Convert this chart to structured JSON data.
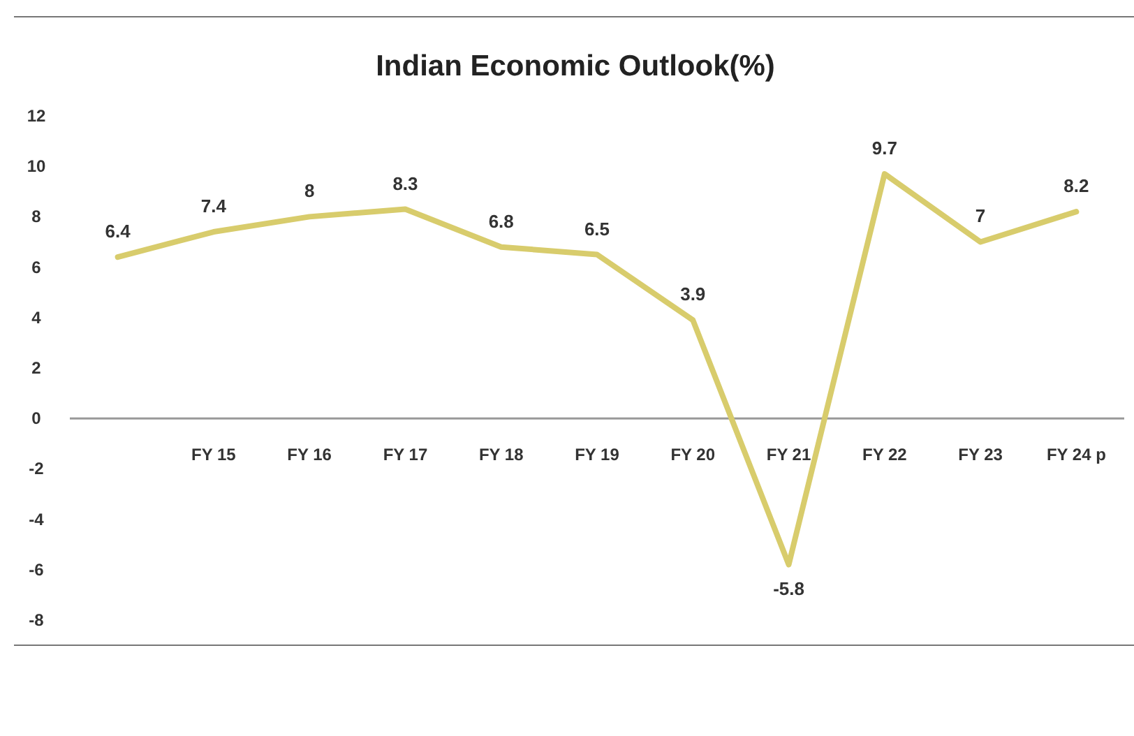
{
  "chart_data": {
    "type": "line",
    "title": "Indian Economic Outlook(%)",
    "categories": [
      null,
      "FY 15",
      "FY 16",
      "FY 17",
      "FY 18",
      "FY 19",
      "FY 20",
      "FY 21",
      "FY 22",
      "FY 23",
      "FY 24 p"
    ],
    "series": [
      {
        "color": "#d8cc6c",
        "values": [
          6.4,
          7.4,
          8,
          8.3,
          6.8,
          6.5,
          3.9,
          -5.8,
          9.7,
          7,
          8.2
        ]
      }
    ],
    "ylim": [
      -9,
      12
    ],
    "yticks": [
      -8,
      -6,
      -4,
      -2,
      0,
      2,
      4,
      6,
      8,
      10,
      12
    ],
    "marker": "none",
    "line_style": "solid",
    "data_labels": true
  }
}
